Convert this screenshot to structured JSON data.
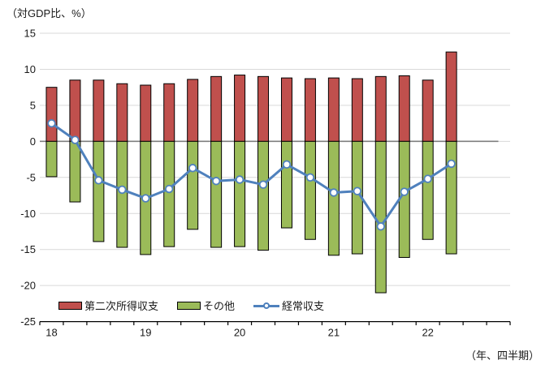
{
  "title": "（対GDP比、%）",
  "axis_caption": "（年、四半期）",
  "legend": [
    {
      "label": "第二次所得収支",
      "type": "bar",
      "color": "#C0504D"
    },
    {
      "label": "その他",
      "type": "bar",
      "color": "#9BBB59"
    },
    {
      "label": "経常収支",
      "type": "line",
      "color": "#4F81BD"
    }
  ],
  "colors": {
    "bar_secondary_income": "#C0504D",
    "bar_other": "#9BBB59",
    "line_current_account": "#4F81BD",
    "bar_border": "#000000",
    "gridline": "#D9D9D9",
    "zero_line": "#7F7F7F",
    "axis_line": "#000000",
    "text": "#1a1a1a",
    "marker_fill": "#FFFFFF",
    "background": "#FFFFFF"
  },
  "chart_data": {
    "type": "bar",
    "subtype": "stacked bars with line overlay",
    "title": "（対GDP比、%）",
    "xlabel": "（年、四半期）",
    "ylabel": "",
    "ylim": [
      -25,
      15
    ],
    "y_ticks": [
      15,
      10,
      5,
      0,
      -5,
      -10,
      -15,
      -20,
      -25
    ],
    "grid": true,
    "legend_position": "bottom-left inside plot",
    "categories": [
      "18Q1",
      "18Q2",
      "18Q3",
      "18Q4",
      "19Q1",
      "19Q2",
      "19Q3",
      "19Q4",
      "20Q1",
      "20Q2",
      "20Q3",
      "20Q4",
      "21Q1",
      "21Q2",
      "21Q3",
      "21Q4",
      "22Q1",
      "22Q2"
    ],
    "x_axis_slots": 20,
    "x_tick_years": [
      {
        "label": "18",
        "slot_index": 0
      },
      {
        "label": "19",
        "slot_index": 4
      },
      {
        "label": "20",
        "slot_index": 8
      },
      {
        "label": "21",
        "slot_index": 12
      },
      {
        "label": "22",
        "slot_index": 16
      }
    ],
    "series": [
      {
        "name": "第二次所得収支",
        "type": "bar",
        "color": "#C0504D",
        "values": [
          7.5,
          8.5,
          8.5,
          8.0,
          7.8,
          8.0,
          8.6,
          9.0,
          9.2,
          9.0,
          8.8,
          8.7,
          8.8,
          8.7,
          9.0,
          9.1,
          8.5,
          12.4
        ]
      },
      {
        "name": "その他",
        "type": "bar",
        "color": "#9BBB59",
        "values": [
          -4.9,
          -8.4,
          -13.9,
          -14.7,
          -15.7,
          -14.6,
          -12.2,
          -14.7,
          -14.6,
          -15.1,
          -12.0,
          -13.6,
          -15.8,
          -15.6,
          -21.0,
          -16.1,
          -13.6,
          -15.6
        ]
      },
      {
        "name": "経常収支",
        "type": "line",
        "color": "#4F81BD",
        "values": [
          2.5,
          0.2,
          -5.4,
          -6.7,
          -7.9,
          -6.6,
          -3.7,
          -5.5,
          -5.3,
          -6.0,
          -3.2,
          -5.0,
          -7.1,
          -6.9,
          -11.8,
          -7.0,
          -5.2,
          -3.1
        ]
      }
    ]
  }
}
